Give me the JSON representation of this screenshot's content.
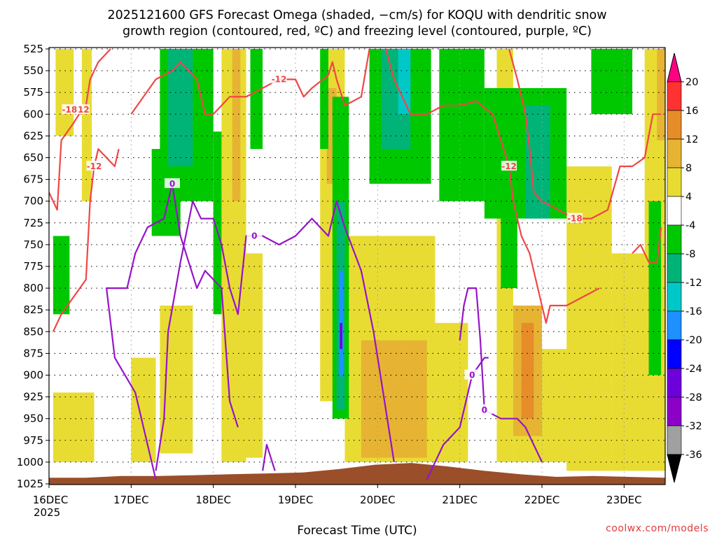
{
  "title_line1": "2025121600 GFS Forecast Omega (shaded, −cm/s) for KOQU with dendritic snow",
  "title_line2": "growth region (contoured, red, ºC) and freezing level (contoured, purple, ºC)",
  "credit": "coolwx.com/models",
  "chart_data": {
    "type": "heatmap",
    "title": "2025121600 GFS Forecast Omega (shaded, −cm/s) for KOQU with dendritic snow growth region (contoured, red, ºC) and freezing level (contoured, purple, ºC)",
    "xlabel": "Forecast Time (UTC)",
    "ylabel": "",
    "x_ticks": [
      "16DEC",
      "17DEC",
      "18DEC",
      "19DEC",
      "20DEC",
      "21DEC",
      "22DEC",
      "23DEC"
    ],
    "x_year_label": "2025",
    "xlim_days": [
      0,
      7.5
    ],
    "y_ticks": [
      "525",
      "550",
      "575",
      "600",
      "625",
      "650",
      "675",
      "700",
      "725",
      "750",
      "775",
      "800",
      "825",
      "850",
      "875",
      "900",
      "925",
      "950",
      "975",
      "1000",
      "1025"
    ],
    "ylim_hpa": [
      1025,
      525
    ],
    "y_inverted": true,
    "grid": true,
    "colorbar": {
      "labels": [
        "20",
        "16",
        "12",
        "8",
        "4",
        "-4",
        "-8",
        "-12",
        "-16",
        "-20",
        "-24",
        "-28",
        "-32",
        "-36"
      ],
      "levels": [
        -36,
        -32,
        -28,
        -24,
        -20,
        -16,
        -12,
        -8,
        -4,
        4,
        8,
        12,
        16,
        20
      ],
      "colors": [
        "#000000",
        "#a0a0a0",
        "#8c00c8",
        "#6e00dc",
        "#0000ff",
        "#1e90ff",
        "#00c8c8",
        "#00b478",
        "#00c800",
        "#ffffff",
        "#e8dc32",
        "#e6b432",
        "#e68c28",
        "#ff3232",
        "#ff0082"
      ]
    },
    "omega_regions": [
      {
        "value": 6,
        "t0": 0.08,
        "t1": 0.3,
        "p0": 525,
        "p1": 625
      },
      {
        "value": 6,
        "t0": 0.4,
        "t1": 0.52,
        "p0": 525,
        "p1": 700
      },
      {
        "value": 6,
        "t0": 0.05,
        "t1": 0.55,
        "p0": 920,
        "p1": 1000
      },
      {
        "value": 6,
        "t0": 1.0,
        "t1": 1.3,
        "p0": 880,
        "p1": 1000
      },
      {
        "value": 6,
        "t0": 1.35,
        "t1": 1.75,
        "p0": 820,
        "p1": 990
      },
      {
        "value": 6,
        "t0": 2.1,
        "t1": 2.6,
        "p0": 760,
        "p1": 995
      },
      {
        "value": 6,
        "t0": 2.1,
        "t1": 2.4,
        "p0": 525,
        "p1": 1000
      },
      {
        "value": 6,
        "t0": 3.3,
        "t1": 3.6,
        "p0": 525,
        "p1": 930
      },
      {
        "value": 10,
        "t0": 3.38,
        "t1": 3.5,
        "p0": 570,
        "p1": 680
      },
      {
        "value": 10,
        "t0": 2.23,
        "t1": 2.33,
        "p0": 525,
        "p1": 700
      },
      {
        "value": 6,
        "t0": 3.6,
        "t1": 4.7,
        "p0": 740,
        "p1": 1000
      },
      {
        "value": 10,
        "t0": 3.8,
        "t1": 4.6,
        "p0": 860,
        "p1": 995
      },
      {
        "value": 6,
        "t0": 4.7,
        "t1": 5.1,
        "p0": 840,
        "p1": 1000
      },
      {
        "value": 6,
        "t0": 5.45,
        "t1": 5.65,
        "p0": 525,
        "p1": 1000
      },
      {
        "value": 6,
        "t0": 5.65,
        "t1": 6.5,
        "p0": 870,
        "p1": 1000
      },
      {
        "value": 10,
        "t0": 5.65,
        "t1": 6.0,
        "p0": 820,
        "p1": 970
      },
      {
        "value": 14,
        "t0": 5.75,
        "t1": 5.9,
        "p0": 840,
        "p1": 950
      },
      {
        "value": 6,
        "t0": 6.3,
        "t1": 6.85,
        "p0": 660,
        "p1": 1010
      },
      {
        "value": 6,
        "t0": 6.85,
        "t1": 7.5,
        "p0": 760,
        "p1": 1010
      },
      {
        "value": 6,
        "t0": 7.25,
        "t1": 7.5,
        "p0": 525,
        "p1": 760
      },
      {
        "value": 10,
        "t0": 7.4,
        "t1": 7.5,
        "p0": 525,
        "p1": 630
      },
      {
        "value": -6,
        "t0": 0.05,
        "t1": 0.25,
        "p0": 740,
        "p1": 830
      },
      {
        "value": -6,
        "t0": 1.25,
        "t1": 1.6,
        "p0": 640,
        "p1": 740
      },
      {
        "value": -6,
        "t0": 1.35,
        "t1": 2.0,
        "p0": 525,
        "p1": 700
      },
      {
        "value": -10,
        "t0": 1.45,
        "t1": 1.75,
        "p0": 525,
        "p1": 660
      },
      {
        "value": -6,
        "t0": 2.0,
        "t1": 2.1,
        "p0": 620,
        "p1": 830
      },
      {
        "value": -6,
        "t0": 2.45,
        "t1": 2.6,
        "p0": 525,
        "p1": 640
      },
      {
        "value": -6,
        "t0": 3.3,
        "t1": 3.4,
        "p0": 525,
        "p1": 640
      },
      {
        "value": -6,
        "t0": 3.45,
        "t1": 3.65,
        "p0": 580,
        "p1": 950
      },
      {
        "value": -10,
        "t0": 3.5,
        "t1": 3.6,
        "p0": 700,
        "p1": 940
      },
      {
        "value": -20,
        "t0": 3.53,
        "t1": 3.58,
        "p0": 780,
        "p1": 900
      },
      {
        "value": -26,
        "t0": 3.54,
        "t1": 3.57,
        "p0": 840,
        "p1": 870
      },
      {
        "value": -6,
        "t0": 3.9,
        "t1": 4.65,
        "p0": 525,
        "p1": 680
      },
      {
        "value": -10,
        "t0": 4.05,
        "t1": 4.4,
        "p0": 525,
        "p1": 640
      },
      {
        "value": -14,
        "t0": 4.25,
        "t1": 4.4,
        "p0": 525,
        "p1": 600
      },
      {
        "value": -6,
        "t0": 4.75,
        "t1": 5.3,
        "p0": 525,
        "p1": 700
      },
      {
        "value": -6,
        "t0": 5.3,
        "t1": 6.3,
        "p0": 570,
        "p1": 720
      },
      {
        "value": -6,
        "t0": 5.5,
        "t1": 5.7,
        "p0": 720,
        "p1": 800
      },
      {
        "value": -10,
        "t0": 5.8,
        "t1": 6.1,
        "p0": 590,
        "p1": 720
      },
      {
        "value": -6,
        "t0": 6.6,
        "t1": 7.1,
        "p0": 525,
        "p1": 600
      },
      {
        "value": -6,
        "t0": 7.3,
        "t1": 7.45,
        "p0": 700,
        "p1": 900
      }
    ],
    "dgz_contours": [
      {
        "label": "-12",
        "points": [
          [
            0.0,
            690
          ],
          [
            0.1,
            710
          ],
          [
            0.15,
            630
          ],
          [
            0.3,
            610
          ],
          [
            0.4,
            595
          ],
          [
            0.45,
            590
          ],
          [
            0.5,
            560
          ],
          [
            0.6,
            540
          ],
          [
            0.75,
            525
          ]
        ]
      },
      {
        "label": "-18",
        "points": [
          [
            0.2,
            600
          ],
          [
            0.25,
            595
          ]
        ]
      },
      {
        "label": "-12",
        "points": [
          [
            0.05,
            850
          ],
          [
            0.15,
            830
          ],
          [
            0.45,
            790
          ],
          [
            0.5,
            700
          ],
          [
            0.55,
            660
          ],
          [
            0.6,
            640
          ],
          [
            0.7,
            650
          ],
          [
            0.8,
            660
          ],
          [
            0.85,
            640
          ]
        ]
      },
      {
        "label": "-12",
        "points": [
          [
            1.0,
            600
          ],
          [
            1.3,
            560
          ],
          [
            1.5,
            550
          ],
          [
            1.6,
            540
          ],
          [
            1.8,
            560
          ],
          [
            1.9,
            600
          ],
          [
            2.0,
            600
          ],
          [
            2.2,
            580
          ],
          [
            2.4,
            580
          ],
          [
            2.6,
            570
          ],
          [
            2.8,
            560
          ],
          [
            3.0,
            560
          ],
          [
            3.1,
            580
          ],
          [
            3.2,
            570
          ],
          [
            3.4,
            555
          ],
          [
            3.45,
            540
          ],
          [
            3.5,
            560
          ],
          [
            3.6,
            590
          ],
          [
            3.8,
            580
          ],
          [
            3.9,
            525
          ]
        ]
      },
      {
        "label": "-12",
        "points": [
          [
            4.1,
            525
          ],
          [
            4.2,
            560
          ],
          [
            4.3,
            580
          ],
          [
            4.4,
            600
          ],
          [
            4.6,
            600
          ],
          [
            4.8,
            590
          ],
          [
            5.0,
            590
          ],
          [
            5.2,
            585
          ],
          [
            5.4,
            600
          ],
          [
            5.5,
            630
          ],
          [
            5.6,
            660
          ],
          [
            5.65,
            700
          ],
          [
            5.75,
            740
          ],
          [
            5.85,
            760
          ],
          [
            5.95,
            800
          ],
          [
            6.05,
            840
          ],
          [
            6.1,
            820
          ],
          [
            6.3,
            820
          ],
          [
            6.5,
            810
          ],
          [
            6.7,
            800
          ]
        ]
      },
      {
        "label": "-18",
        "points": [
          [
            5.6,
            525
          ],
          [
            5.7,
            560
          ],
          [
            5.8,
            600
          ],
          [
            5.85,
            640
          ],
          [
            5.9,
            690
          ],
          [
            6.0,
            700
          ],
          [
            6.2,
            710
          ],
          [
            6.4,
            720
          ],
          [
            6.6,
            720
          ],
          [
            6.8,
            710
          ],
          [
            6.95,
            660
          ],
          [
            7.1,
            660
          ],
          [
            7.25,
            650
          ],
          [
            7.35,
            600
          ],
          [
            7.45,
            600
          ]
        ]
      },
      {
        "label": "",
        "points": [
          [
            7.1,
            760
          ],
          [
            7.2,
            750
          ],
          [
            7.3,
            770
          ],
          [
            7.4,
            770
          ],
          [
            7.45,
            730
          ]
        ]
      }
    ],
    "freezing_contours": [
      {
        "label": "0",
        "points": [
          [
            1.3,
            1010
          ],
          [
            1.4,
            950
          ],
          [
            1.45,
            850
          ],
          [
            1.6,
            770
          ],
          [
            1.75,
            700
          ],
          [
            1.85,
            720
          ],
          [
            2.0,
            720
          ],
          [
            2.1,
            750
          ],
          [
            2.2,
            800
          ],
          [
            2.3,
            830
          ],
          [
            2.4,
            740
          ],
          [
            2.5,
            740
          ],
          [
            2.6,
            740
          ],
          [
            2.8,
            750
          ],
          [
            3.0,
            740
          ],
          [
            3.2,
            720
          ],
          [
            3.4,
            740
          ],
          [
            3.5,
            700
          ],
          [
            3.6,
            730
          ],
          [
            3.8,
            780
          ],
          [
            3.95,
            850
          ],
          [
            4.1,
            940
          ],
          [
            4.2,
            1000
          ]
        ]
      },
      {
        "label": "0",
        "points": [
          [
            1.3,
            1020
          ],
          [
            1.05,
            920
          ],
          [
            0.8,
            880
          ],
          [
            0.7,
            800
          ],
          [
            0.95,
            800
          ],
          [
            1.05,
            760
          ],
          [
            1.2,
            730
          ],
          [
            1.4,
            720
          ],
          [
            1.5,
            680
          ],
          [
            1.6,
            740
          ],
          [
            1.7,
            770
          ],
          [
            1.8,
            800
          ],
          [
            1.9,
            780
          ],
          [
            2.0,
            790
          ],
          [
            2.1,
            800
          ],
          [
            2.2,
            930
          ],
          [
            2.3,
            960
          ]
        ]
      },
      {
        "label": "",
        "points": [
          [
            2.6,
            1010
          ],
          [
            2.65,
            980
          ],
          [
            2.75,
            1010
          ]
        ]
      },
      {
        "label": "0",
        "points": [
          [
            5.0,
            860
          ],
          [
            5.05,
            820
          ],
          [
            5.1,
            800
          ],
          [
            5.2,
            800
          ],
          [
            5.25,
            860
          ],
          [
            5.3,
            940
          ],
          [
            5.5,
            950
          ],
          [
            5.7,
            950
          ],
          [
            5.8,
            960
          ],
          [
            6.0,
            1000
          ]
        ]
      },
      {
        "label": "0",
        "points": [
          [
            4.6,
            1020
          ],
          [
            4.8,
            980
          ],
          [
            5.0,
            960
          ],
          [
            5.15,
            900
          ],
          [
            5.3,
            880
          ],
          [
            5.35,
            880
          ]
        ]
      }
    ],
    "terrain_surface_hpa": [
      1018,
      1018,
      1016,
      1016,
      1015,
      1014,
      1013,
      1012,
      1008,
      1003,
      1001,
      1005,
      1010,
      1014,
      1017,
      1016,
      1017,
      1018
    ]
  }
}
